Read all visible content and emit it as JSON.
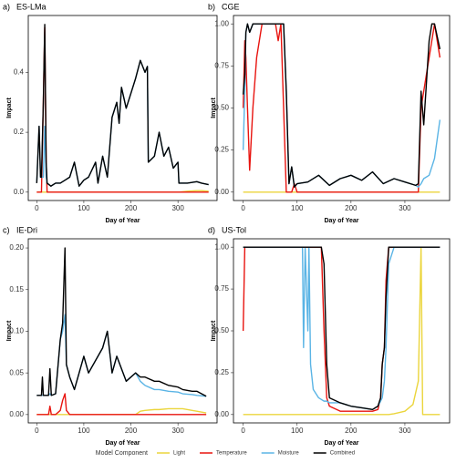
{
  "legend_title": "Model Component",
  "chart_data": [
    {
      "type": "line",
      "tag": "a)",
      "title": "ES-LMa",
      "x_label": "Day of Year",
      "y_label": "Impact",
      "xlim": [
        -18,
        383
      ],
      "xticks": [
        0,
        100,
        200,
        300
      ],
      "ylim": [
        -0.028,
        0.59
      ],
      "yticks": [
        {
          "value": 0,
          "label": "0.0"
        },
        0.2,
        0.4
      ],
      "x": [
        0,
        5,
        8,
        10,
        14,
        17,
        20,
        22,
        30,
        40,
        50,
        60,
        70,
        80,
        90,
        100,
        110,
        125,
        130,
        140,
        150,
        160,
        170,
        175,
        180,
        190,
        200,
        210,
        220,
        230,
        235,
        237,
        250,
        260,
        270,
        280,
        290,
        300,
        302,
        320,
        340,
        350,
        365
      ],
      "series": [
        {
          "name": "Light",
          "color": "#EBD53C",
          "values": [
            0,
            0,
            0,
            0,
            0,
            0,
            0,
            0,
            0,
            0,
            0,
            0,
            0,
            0,
            0,
            0,
            0,
            0,
            0,
            0,
            0,
            0,
            0,
            0,
            0,
            0,
            0,
            0,
            0,
            0,
            0,
            0,
            0,
            0,
            0,
            0,
            0,
            0,
            0,
            0.003,
            0.005,
            0.005,
            0.003
          ]
        },
        {
          "name": "Temperature",
          "color": "#E8140F",
          "values": [
            0,
            0,
            0,
            0,
            0.3,
            0.55,
            0.1,
            0,
            0,
            0,
            0,
            0,
            0,
            0,
            0,
            0,
            0,
            0,
            0,
            0,
            0,
            0,
            0,
            0,
            0,
            0,
            0,
            0,
            0,
            0,
            0,
            0,
            0,
            0,
            0,
            0,
            0,
            0,
            0,
            0,
            0,
            0,
            0
          ]
        },
        {
          "name": "Moisture",
          "color": "#5AB4E5",
          "values": [
            0.03,
            0.22,
            0.05,
            0.05,
            0.05,
            0.22,
            0.05,
            0.03,
            0.02,
            0.03,
            0.03,
            0.04,
            0.05,
            0.1,
            0.02,
            0.04,
            0.05,
            0.1,
            0.03,
            0.12,
            0.05,
            0.25,
            0.3,
            0.23,
            0.35,
            0.28,
            0.33,
            0.38,
            0.44,
            0.4,
            0.42,
            0.1,
            0.12,
            0.2,
            0.12,
            0.15,
            0.08,
            0.1,
            0.03,
            0.03,
            0.035,
            0.03,
            0.025
          ]
        },
        {
          "name": "Combined",
          "color": "#000000",
          "values": [
            0.03,
            0.22,
            0.05,
            0.05,
            0.3,
            0.56,
            0.1,
            0.03,
            0.02,
            0.03,
            0.03,
            0.04,
            0.05,
            0.1,
            0.02,
            0.04,
            0.05,
            0.1,
            0.03,
            0.12,
            0.05,
            0.25,
            0.3,
            0.23,
            0.35,
            0.28,
            0.33,
            0.38,
            0.44,
            0.4,
            0.42,
            0.1,
            0.12,
            0.2,
            0.12,
            0.15,
            0.08,
            0.1,
            0.03,
            0.03,
            0.035,
            0.03,
            0.025
          ]
        }
      ]
    },
    {
      "type": "line",
      "tag": "b)",
      "title": "CGE",
      "x_label": "Day of Year",
      "y_label": "Impact",
      "xlim": [
        -18,
        383
      ],
      "xticks": [
        0,
        100,
        200,
        300
      ],
      "ylim": [
        -0.05,
        1.05
      ],
      "yticks": [
        {
          "value": 0,
          "label": "0.00"
        },
        0.25,
        {
          "value": 0.5,
          "label": "0.50"
        },
        0.75,
        {
          "value": 1,
          "label": "1.00"
        }
      ],
      "x": [
        0,
        3,
        5,
        8,
        12,
        18,
        25,
        35,
        60,
        65,
        70,
        75,
        80,
        85,
        90,
        95,
        100,
        120,
        140,
        160,
        180,
        200,
        220,
        240,
        260,
        280,
        300,
        320,
        325,
        330,
        335,
        345,
        350,
        355,
        365
      ],
      "series": [
        {
          "name": "Light",
          "color": "#EBD53C",
          "values": [
            0,
            0,
            0,
            0,
            0,
            0,
            0,
            0,
            0,
            0,
            0,
            0,
            0,
            0,
            0,
            0,
            0,
            0,
            0,
            0,
            0,
            0,
            0,
            0,
            0,
            0,
            0,
            0,
            0,
            0,
            0,
            0,
            0,
            0,
            0
          ]
        },
        {
          "name": "Temperature",
          "color": "#E8140F",
          "values": [
            0.5,
            0.9,
            0.8,
            0.5,
            0.13,
            0.5,
            0.8,
            1,
            1,
            0.9,
            1,
            0.5,
            0,
            0,
            0,
            0.05,
            0,
            0,
            0,
            0,
            0,
            0,
            0,
            0,
            0,
            0,
            0,
            0,
            0,
            0.5,
            0.6,
            0.8,
            0.9,
            1,
            0.8
          ]
        },
        {
          "name": "Moisture",
          "color": "#5AB4E5",
          "values": [
            0.25,
            0.6,
            0.95,
            1,
            0.95,
            1,
            1,
            1,
            1,
            1,
            1,
            1,
            0.6,
            0.05,
            0.15,
            0.03,
            0.05,
            0.06,
            0.1,
            0.04,
            0.08,
            0.1,
            0.07,
            0.12,
            0.05,
            0.08,
            0.06,
            0.04,
            0.03,
            0.05,
            0.08,
            0.1,
            0.15,
            0.2,
            0.43
          ]
        },
        {
          "name": "Combined",
          "color": "#000000",
          "values": [
            0.58,
            0.7,
            0.95,
            1,
            0.95,
            1,
            1,
            1,
            1,
            1,
            1,
            1,
            0.6,
            0.05,
            0.15,
            0.03,
            0.05,
            0.06,
            0.1,
            0.04,
            0.08,
            0.1,
            0.07,
            0.12,
            0.05,
            0.08,
            0.06,
            0.04,
            0.05,
            0.6,
            0.4,
            0.9,
            1,
            1,
            0.85
          ]
        }
      ]
    },
    {
      "type": "line",
      "tag": "c)",
      "title": "IE-Dri",
      "x_label": "Day of Year",
      "y_label": "Impact",
      "xlim": [
        -18,
        383
      ],
      "xticks": [
        0,
        100,
        200,
        300
      ],
      "ylim": [
        -0.01,
        0.211
      ],
      "yticks": [
        {
          "value": 0,
          "label": "0.00"
        },
        0.05,
        {
          "value": 0.1,
          "label": "0.10"
        },
        0.15,
        {
          "value": 0.2,
          "label": "0.20"
        }
      ],
      "x": [
        0,
        10,
        12,
        14,
        25,
        28,
        31,
        40,
        50,
        55,
        60,
        63,
        70,
        80,
        100,
        110,
        140,
        150,
        160,
        170,
        190,
        210,
        220,
        230,
        250,
        260,
        280,
        300,
        310,
        330,
        340,
        360
      ],
      "series": [
        {
          "name": "Light",
          "color": "#EBD53C",
          "values": [
            0,
            0,
            0,
            0,
            0,
            0,
            0,
            0,
            0,
            0,
            0,
            0,
            0,
            0,
            0,
            0,
            0,
            0,
            0,
            0,
            0,
            0,
            0.004,
            0.005,
            0.006,
            0.006,
            0.007,
            0.007,
            0.007,
            0.005,
            0.004,
            0.002
          ]
        },
        {
          "name": "Temperature",
          "color": "#E8140F",
          "values": [
            0,
            0,
            0,
            0,
            0,
            0.01,
            0,
            0,
            0.005,
            0.017,
            0.025,
            0.005,
            0,
            0,
            0,
            0,
            0,
            0,
            0,
            0,
            0,
            0,
            0,
            0,
            0,
            0,
            0,
            0,
            0,
            0,
            0,
            0
          ]
        },
        {
          "name": "Moisture",
          "color": "#5AB4E5",
          "values": [
            0.023,
            0.023,
            0.023,
            0.023,
            0.023,
            0.025,
            0.023,
            0.025,
            0.09,
            0.1,
            0.12,
            0.06,
            0.045,
            0.03,
            0.07,
            0.05,
            0.08,
            0.1,
            0.05,
            0.07,
            0.04,
            0.05,
            0.04,
            0.035,
            0.03,
            0.03,
            0.028,
            0.027,
            0.025,
            0.024,
            0.023,
            0.022
          ]
        },
        {
          "name": "Combined",
          "color": "#000000",
          "values": [
            0.023,
            0.023,
            0.045,
            0.023,
            0.023,
            0.055,
            0.023,
            0.025,
            0.09,
            0.11,
            0.2,
            0.06,
            0.045,
            0.03,
            0.07,
            0.05,
            0.08,
            0.1,
            0.05,
            0.07,
            0.04,
            0.05,
            0.045,
            0.045,
            0.04,
            0.04,
            0.035,
            0.033,
            0.03,
            0.028,
            0.028,
            0.022
          ]
        }
      ]
    },
    {
      "type": "line",
      "tag": "d)",
      "title": "US-Tol",
      "x_label": "Day of Year",
      "y_label": "Impact",
      "xlim": [
        -18,
        383
      ],
      "xticks": [
        0,
        100,
        200,
        300
      ],
      "ylim": [
        -0.05,
        1.05
      ],
      "yticks": [
        {
          "value": 0,
          "label": "0.00"
        },
        0.25,
        {
          "value": 0.5,
          "label": "0.50"
        },
        0.75,
        {
          "value": 1,
          "label": "1.00"
        }
      ],
      "x": [
        0,
        3,
        50,
        100,
        110,
        112,
        115,
        120,
        122,
        125,
        130,
        140,
        145,
        150,
        155,
        160,
        180,
        200,
        220,
        240,
        250,
        255,
        258,
        262,
        265,
        270,
        280,
        300,
        315,
        325,
        330,
        333,
        340,
        365
      ],
      "series": [
        {
          "name": "Light",
          "color": "#EBD53C",
          "values": [
            0,
            0,
            0,
            0,
            0,
            0,
            0,
            0,
            0,
            0,
            0,
            0,
            0,
            0,
            0,
            0,
            0,
            0,
            0,
            0,
            0,
            0,
            0,
            0,
            0,
            0,
            0.005,
            0.02,
            0.06,
            0.2,
            1,
            0,
            0,
            0
          ]
        },
        {
          "name": "Temperature",
          "color": "#E8140F",
          "values": [
            0.5,
            1,
            1,
            1,
            1,
            1,
            1,
            1,
            1,
            1,
            1,
            1,
            1,
            0.5,
            0.1,
            0.05,
            0.02,
            0.02,
            0.02,
            0.02,
            0.03,
            0.1,
            0.3,
            0.4,
            0.8,
            1,
            1,
            1,
            1,
            1,
            1,
            1,
            1,
            1
          ]
        },
        {
          "name": "Moisture",
          "color": "#5AB4E5",
          "values": [
            1,
            1,
            1,
            1,
            1,
            0.4,
            1,
            0.5,
            1,
            0.3,
            0.15,
            0.1,
            0.09,
            0.08,
            0.08,
            0.07,
            0.07,
            0.05,
            0.04,
            0.03,
            0.05,
            0.08,
            0.1,
            0.2,
            0.4,
            0.9,
            1,
            1,
            1,
            1,
            1,
            1,
            1,
            1
          ]
        },
        {
          "name": "Combined",
          "color": "#000000",
          "values": [
            1,
            1,
            1,
            1,
            1,
            1,
            1,
            1,
            1,
            1,
            1,
            1,
            1,
            0.9,
            0.3,
            0.1,
            0.07,
            0.05,
            0.04,
            0.03,
            0.05,
            0.1,
            0.3,
            0.4,
            0.7,
            1,
            1,
            1,
            1,
            1,
            1,
            1,
            1,
            1
          ]
        }
      ]
    }
  ]
}
